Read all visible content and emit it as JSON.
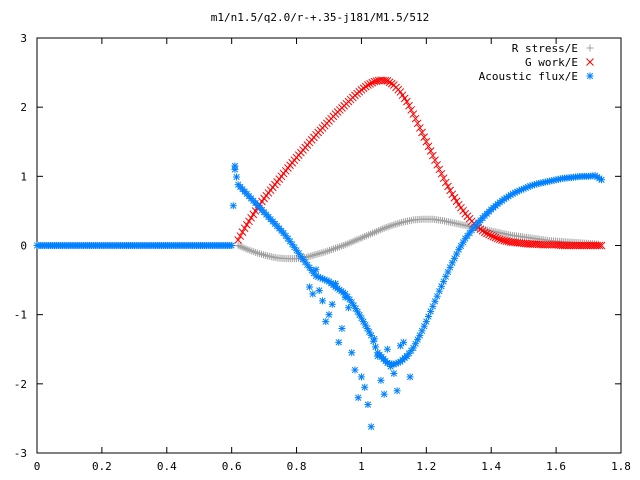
{
  "chart_data": {
    "type": "scatter",
    "title": "m1/n1.5/q2.0/r-+.35-j181/M1.5/512",
    "xlabel": "",
    "ylabel": "",
    "xlim": [
      0,
      1.8
    ],
    "ylim": [
      -3,
      3
    ],
    "x_ticks": [
      "0",
      "0.2",
      "0.4",
      "0.6",
      "0.8",
      "1",
      "1.2",
      "1.4",
      "1.6",
      "1.8"
    ],
    "y_ticks": [
      "3",
      "2",
      "1",
      "0",
      "-1",
      "-2",
      "-3"
    ],
    "grid": false,
    "legend_position": "top-right",
    "series": [
      {
        "name": "R stress/E",
        "marker": "plus",
        "color": "#a0a0a0",
        "x": [
          0.62,
          0.65,
          0.68,
          0.71,
          0.74,
          0.77,
          0.8,
          0.83,
          0.86,
          0.89,
          0.92,
          0.95,
          0.98,
          1.01,
          1.04,
          1.07,
          1.1,
          1.13,
          1.16,
          1.19,
          1.22,
          1.25,
          1.28,
          1.31,
          1.34,
          1.37,
          1.4,
          1.43,
          1.46,
          1.49,
          1.52,
          1.55,
          1.58,
          1.61,
          1.64,
          1.67,
          1.7,
          1.73
        ],
        "values": [
          0.0,
          -0.06,
          -0.11,
          -0.15,
          -0.18,
          -0.19,
          -0.19,
          -0.17,
          -0.13,
          -0.09,
          -0.04,
          0.01,
          0.07,
          0.13,
          0.19,
          0.25,
          0.3,
          0.34,
          0.37,
          0.38,
          0.38,
          0.36,
          0.33,
          0.3,
          0.27,
          0.24,
          0.21,
          0.18,
          0.15,
          0.13,
          0.11,
          0.09,
          0.07,
          0.06,
          0.05,
          0.04,
          0.03,
          0.02
        ]
      },
      {
        "name": "G work/E",
        "marker": "cross",
        "color": "#ff0000",
        "x": [
          0.62,
          0.64,
          0.66,
          0.68,
          0.7,
          0.72,
          0.74,
          0.76,
          0.78,
          0.8,
          0.82,
          0.84,
          0.86,
          0.88,
          0.9,
          0.92,
          0.94,
          0.96,
          0.98,
          1.0,
          1.02,
          1.04,
          1.06,
          1.08,
          1.1,
          1.12,
          1.14,
          1.16,
          1.18,
          1.2,
          1.22,
          1.24,
          1.26,
          1.28,
          1.3,
          1.32,
          1.34,
          1.36,
          1.38,
          1.4,
          1.42,
          1.44,
          1.46,
          1.48,
          1.5,
          1.52,
          1.54,
          1.56,
          1.58,
          1.6,
          1.62,
          1.64,
          1.66,
          1.68,
          1.7,
          1.72,
          1.74
        ],
        "values": [
          0.08,
          0.25,
          0.4,
          0.55,
          0.68,
          0.8,
          0.92,
          1.04,
          1.16,
          1.27,
          1.38,
          1.49,
          1.6,
          1.7,
          1.8,
          1.9,
          1.99,
          2.08,
          2.17,
          2.25,
          2.32,
          2.37,
          2.39,
          2.38,
          2.32,
          2.22,
          2.08,
          1.9,
          1.7,
          1.5,
          1.3,
          1.1,
          0.91,
          0.74,
          0.59,
          0.46,
          0.35,
          0.26,
          0.19,
          0.14,
          0.1,
          0.07,
          0.05,
          0.04,
          0.03,
          0.02,
          0.02,
          0.01,
          0.01,
          0.01,
          0.0,
          0.0,
          0.0,
          0.0,
          0.0,
          0.0,
          0.0
        ]
      },
      {
        "name": "Acoustic flux/E",
        "marker": "star",
        "color": "#0080ff",
        "x": [
          0.0,
          0.03,
          0.06,
          0.09,
          0.12,
          0.15,
          0.18,
          0.21,
          0.24,
          0.27,
          0.3,
          0.33,
          0.36,
          0.39,
          0.42,
          0.45,
          0.48,
          0.51,
          0.54,
          0.57,
          0.6,
          0.61,
          0.61,
          0.62,
          0.64,
          0.66,
          0.68,
          0.7,
          0.72,
          0.74,
          0.76,
          0.78,
          0.8,
          0.82,
          0.84,
          0.86,
          0.88,
          0.9,
          0.92,
          0.95,
          0.97,
          1.0,
          1.03,
          1.05,
          1.08,
          1.1,
          1.12,
          1.14,
          1.16,
          1.18,
          1.2,
          1.22,
          1.24,
          1.26,
          1.28,
          1.3,
          1.32,
          1.34,
          1.36,
          1.38,
          1.4,
          1.42,
          1.44,
          1.46,
          1.48,
          1.5,
          1.52,
          1.54,
          1.56,
          1.58,
          1.6,
          1.62,
          1.64,
          1.66,
          1.68,
          1.7,
          1.72,
          1.74,
          0.84,
          0.85,
          0.86,
          0.87,
          0.88,
          0.89,
          0.9,
          0.91,
          0.92,
          0.93,
          0.94,
          0.95,
          0.96,
          0.97,
          0.98,
          0.99,
          1.0,
          1.01,
          1.02,
          1.03,
          1.04,
          1.05,
          1.06,
          1.07,
          1.08,
          1.09,
          1.1,
          1.11,
          1.12,
          1.13,
          1.14,
          1.15
        ],
        "values": [
          0,
          0,
          0,
          0,
          0,
          0,
          0,
          0,
          0,
          0,
          0,
          0,
          0,
          0,
          0,
          0,
          0,
          0,
          0,
          0,
          0,
          1.15,
          1.1,
          0.88,
          0.78,
          0.68,
          0.58,
          0.48,
          0.38,
          0.28,
          0.18,
          0.06,
          -0.07,
          -0.2,
          -0.32,
          -0.44,
          -0.48,
          -0.52,
          -0.6,
          -0.7,
          -0.82,
          -1.05,
          -1.3,
          -1.55,
          -1.7,
          -1.72,
          -1.68,
          -1.6,
          -1.48,
          -1.3,
          -1.1,
          -0.88,
          -0.66,
          -0.45,
          -0.25,
          -0.06,
          0.1,
          0.22,
          0.33,
          0.43,
          0.52,
          0.6,
          0.67,
          0.73,
          0.78,
          0.82,
          0.86,
          0.89,
          0.91,
          0.93,
          0.95,
          0.97,
          0.98,
          0.99,
          1.0,
          1.0,
          1.01,
          0.95,
          -0.6,
          -0.7,
          -0.35,
          -0.65,
          -0.8,
          -1.1,
          -1.0,
          -0.85,
          -0.55,
          -1.4,
          -1.2,
          -0.75,
          -0.9,
          -1.55,
          -1.8,
          -2.2,
          -1.9,
          -2.05,
          -2.3,
          -2.62,
          -1.35,
          -1.6,
          -1.95,
          -2.15,
          -1.5,
          -1.75,
          -1.85,
          -2.1,
          -1.45,
          -1.4,
          -1.6,
          -1.9
        ]
      }
    ]
  }
}
